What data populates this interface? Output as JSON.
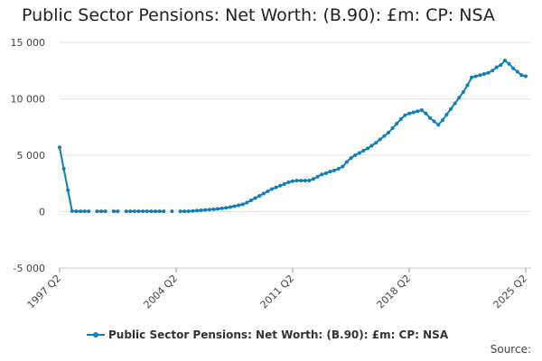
{
  "chart_data": {
    "type": "line",
    "title": "Public Sector Pensions: Net Worth: (B.90): £m: CP: NSA",
    "xlabel": "",
    "ylabel": "",
    "ylim": [
      -5000,
      15000
    ],
    "yticks": [
      15000,
      10000,
      5000,
      0,
      -5000
    ],
    "ytick_labels": [
      "15 000",
      "10 000",
      "5 000",
      "0",
      "-5 000"
    ],
    "x_start": "1997 Q2",
    "x_end": "2025 Q2",
    "xtick_labels": [
      "1997 Q2",
      "2004 Q2",
      "2011 Q2",
      "2018 Q2",
      "2025 Q2"
    ],
    "xtick_indices": [
      0,
      28,
      56,
      84,
      112
    ],
    "grid": true,
    "legend_position": "bottom",
    "series": [
      {
        "name": "Public Sector Pensions: Net Worth: (B.90): £m: CP: NSA",
        "color": "#0e7fb8",
        "values": [
          5700,
          3800,
          1900,
          50,
          30,
          30,
          30,
          30,
          null,
          30,
          30,
          30,
          null,
          30,
          30,
          null,
          30,
          30,
          30,
          30,
          30,
          30,
          30,
          30,
          30,
          30,
          null,
          30,
          null,
          30,
          30,
          30,
          60,
          90,
          120,
          150,
          180,
          210,
          250,
          290,
          340,
          400,
          480,
          560,
          650,
          800,
          1000,
          1200,
          1400,
          1600,
          1800,
          2000,
          2150,
          2300,
          2450,
          2600,
          2700,
          2750,
          2750,
          2750,
          2760,
          2900,
          3100,
          3300,
          3400,
          3550,
          3650,
          3800,
          4000,
          4400,
          4750,
          5000,
          5200,
          5400,
          5600,
          5850,
          6100,
          6400,
          6700,
          7000,
          7400,
          7800,
          8200,
          8550,
          8700,
          8800,
          8900,
          9000,
          8700,
          8300,
          8000,
          7700,
          8100,
          8600,
          9100,
          9600,
          10100,
          10600,
          11200,
          11900,
          12000,
          12100,
          12200,
          12300,
          12500,
          12800,
          13000,
          13400,
          13100,
          12700,
          12400,
          12100,
          12000
        ]
      }
    ]
  },
  "legend": {
    "label": "Public Sector Pensions: Net Worth: (B.90): £m: CP: NSA"
  },
  "footer": {
    "source": "Source:"
  }
}
